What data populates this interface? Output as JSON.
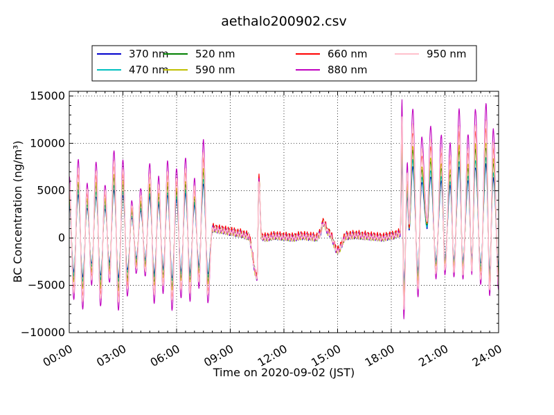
{
  "chart_data": {
    "type": "line",
    "title": "aethalo200902.csv",
    "xlabel": "Time on 2020-09-02 (JST)",
    "ylabel": "BC Concentration (ng/m³)",
    "xlim": [
      "00:00",
      "24:00"
    ],
    "ylim": [
      -10000,
      15500
    ],
    "x_ticks": [
      "00:00",
      "03:00",
      "06:00",
      "09:00",
      "12:00",
      "15:00",
      "18:00",
      "21:00",
      "24:00"
    ],
    "y_ticks": [
      -10000,
      -5000,
      0,
      5000,
      10000,
      15000
    ],
    "grid": true,
    "legend_position": "top-center",
    "series": [
      {
        "name": "370 nm",
        "color": "#0000cc"
      },
      {
        "name": "470 nm",
        "color": "#00bfbf"
      },
      {
        "name": "520 nm",
        "color": "#007f00"
      },
      {
        "name": "590 nm",
        "color": "#bfbf00"
      },
      {
        "name": "660 nm",
        "color": "#ff0000"
      },
      {
        "name": "880 nm",
        "color": "#bf00bf"
      },
      {
        "name": "950 nm",
        "color": "#ffc0cb"
      }
    ],
    "features": {
      "hours": [
        0.0,
        0.25,
        0.5,
        0.75,
        1.0,
        1.25,
        1.5,
        1.75,
        2.0,
        2.25,
        2.5,
        2.75,
        3.0,
        3.25,
        3.5,
        3.75,
        4.0,
        4.25,
        4.5,
        4.75,
        5.0,
        5.25,
        5.5,
        5.75,
        6.0,
        6.25,
        6.5,
        6.75,
        7.0,
        7.25,
        7.5,
        7.75,
        8.0,
        8.5,
        9.0,
        9.5,
        10.0,
        10.5,
        10.6,
        10.75,
        11.0,
        11.5,
        12.0,
        12.5,
        13.0,
        13.5,
        13.8,
        14.0,
        14.2,
        14.5,
        15.0,
        15.5,
        16.0,
        16.5,
        17.0,
        17.5,
        18.0,
        18.5,
        18.6,
        18.7,
        18.9,
        19.0,
        19.2,
        19.5,
        19.7,
        20.0,
        20.2,
        20.5,
        20.8,
        21.0,
        21.3,
        21.5,
        21.8,
        22.0,
        22.3,
        22.5,
        22.7,
        23.0,
        23.3,
        23.5,
        23.7,
        24.0
      ],
      "bc_880nm": [
        6500,
        -6500,
        8300,
        -7500,
        5800,
        -5000,
        8100,
        -7300,
        5700,
        -4800,
        9300,
        -7700,
        8300,
        -6200,
        4000,
        -3800,
        5300,
        -4100,
        7900,
        -6900,
        6500,
        -5800,
        8100,
        -7600,
        7300,
        -6300,
        8400,
        -6600,
        6200,
        -5200,
        10300,
        -6800,
        1100,
        900,
        700,
        500,
        200,
        -4600,
        6900,
        100,
        0,
        200,
        100,
        0,
        200,
        100,
        0,
        400,
        1800,
        600,
        -1500,
        200,
        300,
        200,
        100,
        0,
        200,
        500,
        14600,
        -8600,
        7900,
        1500,
        13600,
        -6200,
        10600,
        2000,
        11800,
        -4200,
        10900,
        -3800,
        10000,
        -4100,
        13600,
        -4300,
        10900,
        -3800,
        13700,
        -4900,
        14100,
        -6200,
        11600,
        -5600
      ]
    }
  }
}
